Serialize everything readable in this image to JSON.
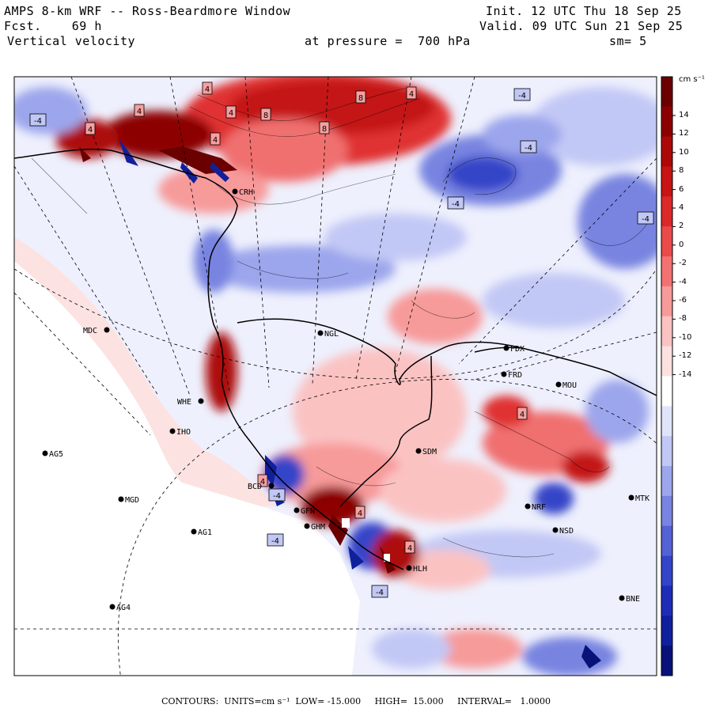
{
  "header": {
    "title": "AMPS 8-km WRF -- Ross-Beardmore Window",
    "forecast": "Fcst.    69 h",
    "field": "Vertical velocity",
    "init": "Init. 12 UTC Thu 18 Sep 25",
    "valid": "Valid. 09 UTC Sun 21 Sep 25",
    "pressure": "at pressure =  700 hPa",
    "smoothing": "sm= 5"
  },
  "colorbar": {
    "units_label": "cm s⁻¹",
    "ticks": [
      "14",
      "12",
      "10",
      "8",
      "6",
      "4",
      "2",
      "0",
      "-2",
      "-4",
      "-6",
      "-8",
      "-10",
      "-12",
      "-14"
    ],
    "colors": [
      "#6a0000",
      "#8c0000",
      "#ad0808",
      "#c81414",
      "#dc2828",
      "#ea4a4a",
      "#f27272",
      "#f79a9a",
      "#fbc2c2",
      "#fde0e0",
      "#ffffff",
      "#e0e4fb",
      "#c2c8f5",
      "#9ca6ec",
      "#7884e0",
      "#5562d4",
      "#3444c8",
      "#1e2cb8",
      "#10209c",
      "#081278"
    ]
  },
  "stations": [
    {
      "code": "CRH"
    },
    {
      "code": "MDC"
    },
    {
      "code": "NGL"
    },
    {
      "code": "FDX"
    },
    {
      "code": "FRD"
    },
    {
      "code": "MOU"
    },
    {
      "code": "WHE"
    },
    {
      "code": "IHO"
    },
    {
      "code": "AG5"
    },
    {
      "code": "SDM"
    },
    {
      "code": "BCD"
    },
    {
      "code": "MGD"
    },
    {
      "code": "GFN"
    },
    {
      "code": "GHM"
    },
    {
      "code": "AG1"
    },
    {
      "code": "NRF"
    },
    {
      "code": "MTK"
    },
    {
      "code": "NSD"
    },
    {
      "code": "HLH"
    },
    {
      "code": "AG4"
    },
    {
      "code": "BNE"
    }
  ],
  "contour_labels": [
    "-4",
    "-4",
    "-4",
    "-4",
    "-4",
    "-4",
    "-4",
    "-4",
    "4",
    "4",
    "4",
    "4",
    "4",
    "4",
    "4",
    "4",
    "8",
    "8",
    "8",
    "4",
    "4"
  ],
  "footer": {
    "text": "CONTOURS:  UNITS=cm s⁻¹  LOW= -15.000     HIGH=  15.000     INTERVAL=   1.0000"
  }
}
